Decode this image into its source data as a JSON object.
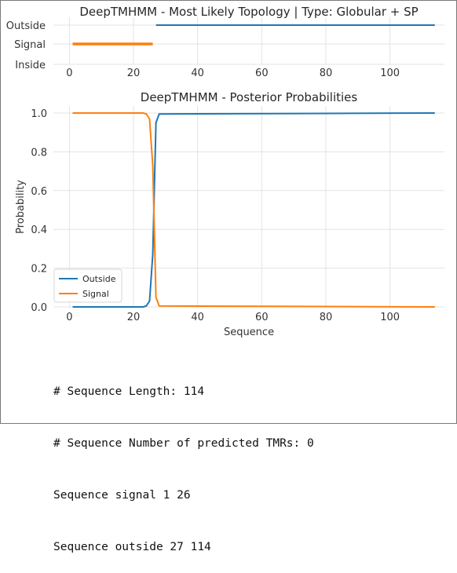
{
  "chart_data": [
    {
      "type": "line",
      "title": "DeepTMHMM - Most Likely Topology | Type: Globular + SP",
      "xlabel": "",
      "ylabel": "",
      "xlim": [
        -5,
        117
      ],
      "xticks": [
        0,
        20,
        40,
        60,
        80,
        100
      ],
      "ycategories": [
        "Inside",
        "Signal",
        "Outside"
      ],
      "grid": true,
      "series": [
        {
          "name": "Signal",
          "color": "#ff7f0e",
          "level": "Signal",
          "x": [
            1,
            26
          ]
        },
        {
          "name": "Outside",
          "color": "#1f77b4",
          "level": "Outside",
          "x": [
            27,
            114
          ]
        }
      ]
    },
    {
      "type": "line",
      "title": "DeepTMHMM - Posterior Probabilities",
      "xlabel": "Sequence",
      "ylabel": "Probability",
      "xlim": [
        -5,
        117
      ],
      "ylim": [
        0,
        1.0
      ],
      "xticks": [
        0,
        20,
        40,
        60,
        80,
        100
      ],
      "yticks": [
        0.0,
        0.2,
        0.4,
        0.6,
        0.8,
        1.0
      ],
      "grid": true,
      "legend_position": "lower-left",
      "series": [
        {
          "name": "Outside",
          "color": "#1f77b4",
          "x": [
            1,
            23,
            24,
            25,
            26,
            27,
            28,
            114
          ],
          "y": [
            0.0,
            0.0,
            0.005,
            0.03,
            0.27,
            0.95,
            0.995,
            1.0
          ]
        },
        {
          "name": "Signal",
          "color": "#ff7f0e",
          "x": [
            1,
            23,
            24,
            25,
            26,
            27,
            28,
            114
          ],
          "y": [
            1.0,
            1.0,
            0.995,
            0.97,
            0.73,
            0.05,
            0.005,
            0.0
          ]
        }
      ]
    }
  ],
  "summary": {
    "lines": [
      "# Sequence Length: 114",
      "# Sequence Number of predicted TMRs: 0",
      "Sequence signal 1 26",
      "Sequence outside 27 114"
    ]
  }
}
